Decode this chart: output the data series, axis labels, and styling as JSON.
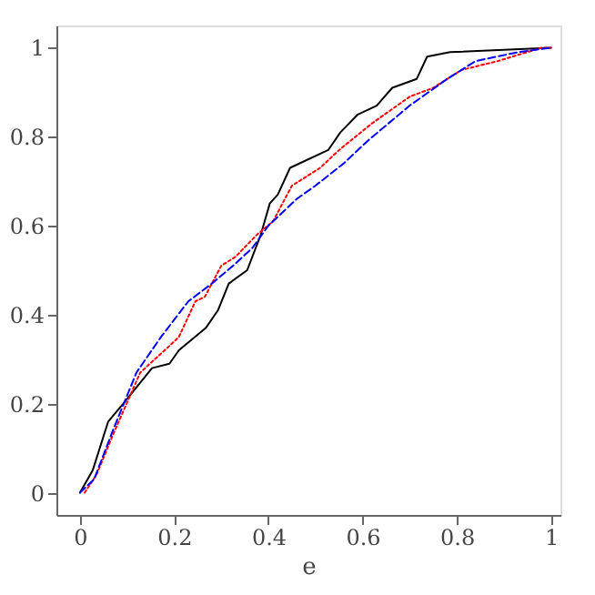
{
  "chart_data": {
    "type": "line",
    "xlabel": "e",
    "xlim": [
      -0.05,
      1.02
    ],
    "ylim": [
      -0.05,
      1.05
    ],
    "xticks": [
      0,
      0.2,
      0.4,
      0.6,
      0.8,
      1
    ],
    "yticks": [
      0,
      0.2,
      0.4,
      0.6,
      0.8,
      1
    ],
    "grid": false,
    "series": [
      {
        "color": "#000000",
        "line_style": "solid",
        "x": [
          0,
          0.027,
          0.06,
          0.092,
          0.153,
          0.19,
          0.21,
          0.267,
          0.293,
          0.316,
          0.355,
          0.384,
          0.403,
          0.42,
          0.446,
          0.527,
          0.553,
          0.59,
          0.63,
          0.663,
          0.715,
          0.737,
          0.786,
          1.0
        ],
        "values": [
          0,
          0.05,
          0.16,
          0.2,
          0.28,
          0.29,
          0.32,
          0.37,
          0.41,
          0.47,
          0.5,
          0.58,
          0.65,
          0.67,
          0.73,
          0.77,
          0.81,
          0.85,
          0.87,
          0.91,
          0.93,
          0.98,
          0.99,
          1.0
        ]
      },
      {
        "color": "#ff0000",
        "line_style": "dotted",
        "x": [
          0.01,
          0.035,
          0.07,
          0.128,
          0.19,
          0.21,
          0.245,
          0.265,
          0.3,
          0.33,
          0.376,
          0.41,
          0.45,
          0.51,
          0.55,
          0.62,
          0.7,
          0.75,
          0.81,
          0.887,
          0.98,
          1.0
        ],
        "values": [
          0,
          0.04,
          0.13,
          0.27,
          0.33,
          0.35,
          0.43,
          0.44,
          0.51,
          0.53,
          0.58,
          0.61,
          0.69,
          0.73,
          0.77,
          0.83,
          0.89,
          0.91,
          0.95,
          0.97,
          1.0,
          1.0
        ]
      },
      {
        "color": "#0000ff",
        "line_style": "dashed",
        "x": [
          0,
          0.03,
          0.07,
          0.12,
          0.172,
          0.23,
          0.28,
          0.325,
          0.366,
          0.4,
          0.46,
          0.5,
          0.56,
          0.61,
          0.7,
          0.78,
          0.84,
          0.93,
          1.0
        ],
        "values": [
          0,
          0.03,
          0.14,
          0.27,
          0.35,
          0.43,
          0.47,
          0.51,
          0.55,
          0.6,
          0.66,
          0.69,
          0.74,
          0.79,
          0.87,
          0.93,
          0.97,
          0.99,
          1.0
        ]
      }
    ]
  }
}
